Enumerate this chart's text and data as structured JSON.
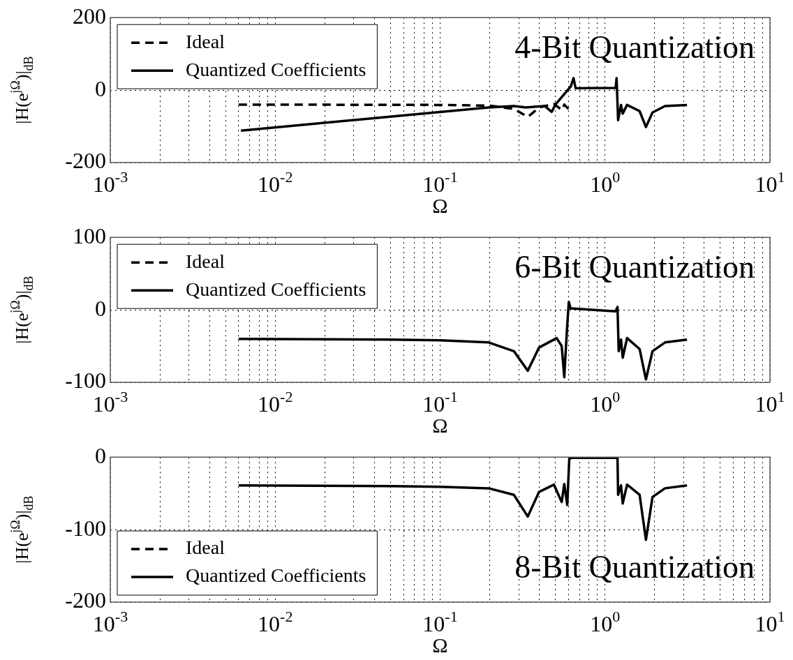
{
  "chart_data": [
    {
      "type": "line",
      "title": "4-Bit Quantization",
      "xlabel": "Ω",
      "ylabel": "|H(e$^{jΩ}$)|$_{dB}$",
      "log": "x",
      "grid": true,
      "legend": "top left",
      "marker": "none",
      "xlim": [
        0.001,
        10
      ],
      "xticks": [
        {
          "value": 0.001,
          "label": "10$^{-3}$"
        },
        {
          "value": 0.002,
          "label": null
        },
        {
          "value": 0.003,
          "label": null
        },
        {
          "value": 0.004,
          "label": null
        },
        {
          "value": 0.005,
          "label": null
        },
        {
          "value": 0.006,
          "label": null
        },
        {
          "value": 0.007,
          "label": null
        },
        {
          "value": 0.008,
          "label": null
        },
        {
          "value": 0.009,
          "label": null
        },
        {
          "value": 0.01,
          "label": "10$^{-2}$"
        },
        {
          "value": 0.02,
          "label": null
        },
        {
          "value": 0.03,
          "label": null
        },
        {
          "value": 0.04,
          "label": null
        },
        {
          "value": 0.05,
          "label": null
        },
        {
          "value": 0.06,
          "label": null
        },
        {
          "value": 0.07,
          "label": null
        },
        {
          "value": 0.08,
          "label": null
        },
        {
          "value": 0.09,
          "label": null
        },
        {
          "value": 0.1,
          "label": "10$^{-1}$"
        },
        {
          "value": 0.2,
          "label": null
        },
        {
          "value": 0.3,
          "label": null
        },
        {
          "value": 0.4,
          "label": null
        },
        {
          "value": 0.5,
          "label": null
        },
        {
          "value": 0.6,
          "label": null
        },
        {
          "value": 0.7,
          "label": null
        },
        {
          "value": 0.8,
          "label": null
        },
        {
          "value": 0.9,
          "label": null
        },
        {
          "value": 1,
          "label": "10$^{0}$"
        },
        {
          "value": 2,
          "label": null
        },
        {
          "value": 3,
          "label": null
        },
        {
          "value": 4,
          "label": null
        },
        {
          "value": 5,
          "label": null
        },
        {
          "value": 6,
          "label": null
        },
        {
          "value": 7,
          "label": null
        },
        {
          "value": 8,
          "label": null
        },
        {
          "value": 9,
          "label": null
        },
        {
          "value": 10,
          "label": "10$^{1}$"
        }
      ],
      "ylim": [
        -200,
        200
      ],
      "yticks": [
        -200,
        0,
        200
      ],
      "series": [
        {
          "name": "Ideal",
          "color": "#000000",
          "line_style": "dashed",
          "x": [
            0.006,
            0.1,
            0.2,
            0.28,
            0.34,
            0.4,
            0.49,
            0.546,
            0.566,
            0.6
          ],
          "values": [
            -40,
            -41,
            -43,
            -52,
            -74,
            -48,
            -38,
            -55,
            -40,
            -52
          ]
        },
        {
          "name": "Quantized Coefficients",
          "color": "#000000",
          "line_style": "solid",
          "x": [
            0.0062,
            0.197,
            0.28,
            0.33,
            0.43,
            0.475,
            0.5,
            0.62,
            0.644,
            0.663,
            1.16,
            1.175,
            1.2,
            1.25,
            1.28,
            1.36,
            1.62,
            1.77,
            1.94,
            2.31,
            3.14
          ],
          "values": [
            -112,
            -48,
            -44,
            -48,
            -44,
            -60,
            -40,
            10,
            33,
            5,
            6,
            33,
            -83,
            -41,
            -65,
            -41,
            -58,
            -102,
            -62,
            -44,
            -41
          ]
        }
      ]
    },
    {
      "type": "line",
      "title": "6-Bit Quantization",
      "xlabel": "Ω",
      "ylabel": "|H(e$^{jΩ}$)|$_{dB}$",
      "log": "x",
      "grid": true,
      "legend": "top left",
      "marker": "none",
      "xlim": [
        0.001,
        10
      ],
      "xticks": [
        {
          "value": 0.001,
          "label": "10$^{-3}$"
        },
        {
          "value": 0.002,
          "label": null
        },
        {
          "value": 0.003,
          "label": null
        },
        {
          "value": 0.004,
          "label": null
        },
        {
          "value": 0.005,
          "label": null
        },
        {
          "value": 0.006,
          "label": null
        },
        {
          "value": 0.007,
          "label": null
        },
        {
          "value": 0.008,
          "label": null
        },
        {
          "value": 0.009,
          "label": null
        },
        {
          "value": 0.01,
          "label": "10$^{-2}$"
        },
        {
          "value": 0.02,
          "label": null
        },
        {
          "value": 0.03,
          "label": null
        },
        {
          "value": 0.04,
          "label": null
        },
        {
          "value": 0.05,
          "label": null
        },
        {
          "value": 0.06,
          "label": null
        },
        {
          "value": 0.07,
          "label": null
        },
        {
          "value": 0.08,
          "label": null
        },
        {
          "value": 0.09,
          "label": null
        },
        {
          "value": 0.1,
          "label": "10$^{-1}$"
        },
        {
          "value": 0.2,
          "label": null
        },
        {
          "value": 0.3,
          "label": null
        },
        {
          "value": 0.4,
          "label": null
        },
        {
          "value": 0.5,
          "label": null
        },
        {
          "value": 0.6,
          "label": null
        },
        {
          "value": 0.7,
          "label": null
        },
        {
          "value": 0.8,
          "label": null
        },
        {
          "value": 0.9,
          "label": null
        },
        {
          "value": 1,
          "label": "10$^{0}$"
        },
        {
          "value": 2,
          "label": null
        },
        {
          "value": 3,
          "label": null
        },
        {
          "value": 4,
          "label": null
        },
        {
          "value": 5,
          "label": null
        },
        {
          "value": 6,
          "label": null
        },
        {
          "value": 7,
          "label": null
        },
        {
          "value": 8,
          "label": null
        },
        {
          "value": 9,
          "label": null
        },
        {
          "value": 10,
          "label": "10$^{1}$"
        }
      ],
      "ylim": [
        -100,
        100
      ],
      "yticks": [
        -100,
        0,
        100
      ],
      "series": [
        {
          "name": "Ideal",
          "color": "#000000",
          "line_style": "dashed"
        },
        {
          "name": "Quantized Coefficients",
          "color": "#000000",
          "line_style": "solid",
          "x": [
            0.006,
            0.05,
            0.1,
            0.197,
            0.28,
            0.34,
            0.398,
            0.509,
            0.546,
            0.566,
            0.576,
            0.59,
            0.603,
            0.618,
            1.16,
            1.19,
            1.21,
            1.25,
            1.28,
            1.36,
            1.62,
            1.77,
            1.94,
            2.31,
            3.14
          ],
          "values": [
            -40,
            -41,
            -42,
            -45,
            -57,
            -84,
            -52,
            -39,
            -50,
            -93,
            -61,
            -21,
            11,
            2,
            -2,
            4,
            -57,
            -41,
            -66,
            -39,
            -54,
            -96,
            -57,
            -45,
            -41
          ]
        }
      ]
    },
    {
      "type": "line",
      "title": "8-Bit Quantization",
      "xlabel": "Ω",
      "ylabel": "|H(e$^{jΩ}$)|$_{dB}$",
      "log": "x",
      "grid": true,
      "legend": "bottom left",
      "marker": "none",
      "xlim": [
        0.001,
        10
      ],
      "xticks": [
        {
          "value": 0.001,
          "label": "10$^{-3}$"
        },
        {
          "value": 0.002,
          "label": null
        },
        {
          "value": 0.003,
          "label": null
        },
        {
          "value": 0.004,
          "label": null
        },
        {
          "value": 0.005,
          "label": null
        },
        {
          "value": 0.006,
          "label": null
        },
        {
          "value": 0.007,
          "label": null
        },
        {
          "value": 0.008,
          "label": null
        },
        {
          "value": 0.009,
          "label": null
        },
        {
          "value": 0.01,
          "label": "10$^{-2}$"
        },
        {
          "value": 0.02,
          "label": null
        },
        {
          "value": 0.03,
          "label": null
        },
        {
          "value": 0.04,
          "label": null
        },
        {
          "value": 0.05,
          "label": null
        },
        {
          "value": 0.06,
          "label": null
        },
        {
          "value": 0.07,
          "label": null
        },
        {
          "value": 0.08,
          "label": null
        },
        {
          "value": 0.09,
          "label": null
        },
        {
          "value": 0.1,
          "label": "10$^{-1}$"
        },
        {
          "value": 0.2,
          "label": null
        },
        {
          "value": 0.3,
          "label": null
        },
        {
          "value": 0.4,
          "label": null
        },
        {
          "value": 0.5,
          "label": null
        },
        {
          "value": 0.6,
          "label": null
        },
        {
          "value": 0.7,
          "label": null
        },
        {
          "value": 0.8,
          "label": null
        },
        {
          "value": 0.9,
          "label": null
        },
        {
          "value": 1,
          "label": "10$^{0}$"
        },
        {
          "value": 2,
          "label": null
        },
        {
          "value": 3,
          "label": null
        },
        {
          "value": 4,
          "label": null
        },
        {
          "value": 5,
          "label": null
        },
        {
          "value": 6,
          "label": null
        },
        {
          "value": 7,
          "label": null
        },
        {
          "value": 8,
          "label": null
        },
        {
          "value": 9,
          "label": null
        },
        {
          "value": 10,
          "label": "10$^{1}$"
        }
      ],
      "ylim": [
        -200,
        0
      ],
      "yticks": [
        -200,
        -100,
        0
      ],
      "series": [
        {
          "name": "Ideal",
          "color": "#000000",
          "line_style": "dashed"
        },
        {
          "name": "Quantized Coefficients",
          "color": "#000000",
          "line_style": "solid",
          "x": [
            0.006,
            0.05,
            0.1,
            0.197,
            0.28,
            0.34,
            0.398,
            0.49,
            0.546,
            0.566,
            0.59,
            0.607,
            0.629,
            1.16,
            1.19,
            1.2,
            1.25,
            1.28,
            1.36,
            1.62,
            1.77,
            1.94,
            2.31,
            3.14
          ],
          "values": [
            -39,
            -40,
            -41,
            -43,
            -52,
            -82,
            -48,
            -38,
            -62,
            -37,
            -66,
            -2,
            -1,
            -1,
            -1,
            -52,
            -39,
            -64,
            -38,
            -52,
            -114,
            -55,
            -43,
            -39
          ]
        }
      ]
    }
  ]
}
